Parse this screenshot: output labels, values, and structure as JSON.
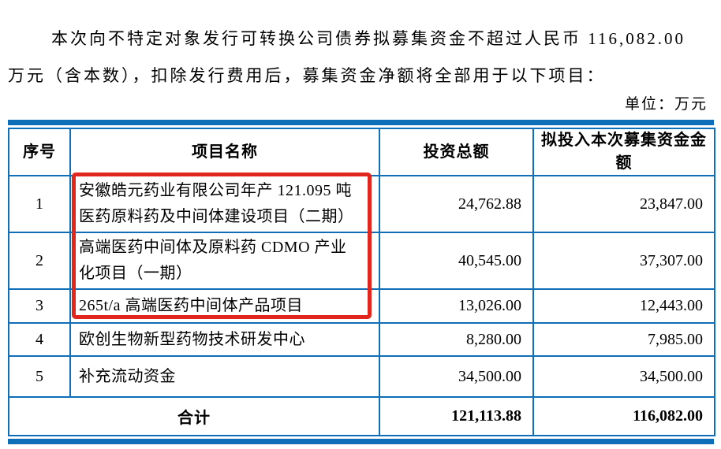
{
  "intro": {
    "line1": "本次向不特定对象发行可转换公司债券拟募集资金不超过人民币 116,082.00",
    "line2": "万元（含本数），扣除发行费用后，募集资金净额将全部用于以下项目："
  },
  "unit_label": "单位：万元",
  "table": {
    "headers": {
      "seq": "序号",
      "name": "项目名称",
      "investment": "投资总额",
      "raised": "拟投入本次募集资金金额"
    },
    "rows": [
      {
        "seq": "1",
        "name_lines": [
          "安徽皓元药业有限公司年产 121.095 吨",
          "医药原料药及中间体建设项目（二期）"
        ],
        "investment": "24,762.88",
        "raised": "23,847.00",
        "highlighted": true
      },
      {
        "seq": "2",
        "name_lines": [
          "高端医药中间体及原料药 CDMO 产业",
          "化项目（一期）"
        ],
        "investment": "40,545.00",
        "raised": "37,307.00",
        "highlighted": true
      },
      {
        "seq": "3",
        "name_lines": [
          "265t/a 高端医药中间体产品项目"
        ],
        "investment": "13,026.00",
        "raised": "12,443.00",
        "highlighted": true
      },
      {
        "seq": "4",
        "name_lines": [
          "欧创生物新型药物技术研发中心"
        ],
        "investment": "8,280.00",
        "raised": "7,985.00",
        "highlighted": false
      },
      {
        "seq": "5",
        "name_lines": [
          "补充流动资金"
        ],
        "investment": "34,500.00",
        "raised": "34,500.00",
        "highlighted": false
      }
    ],
    "total_row": {
      "label": "合计",
      "investment": "121,113.88",
      "raised": "116,082.00"
    }
  },
  "annotation": {
    "description": "red rectangle highlighting project names of rows 1-3"
  },
  "colors": {
    "table_border": "#0e6eb8",
    "highlight": "#e2261d"
  }
}
